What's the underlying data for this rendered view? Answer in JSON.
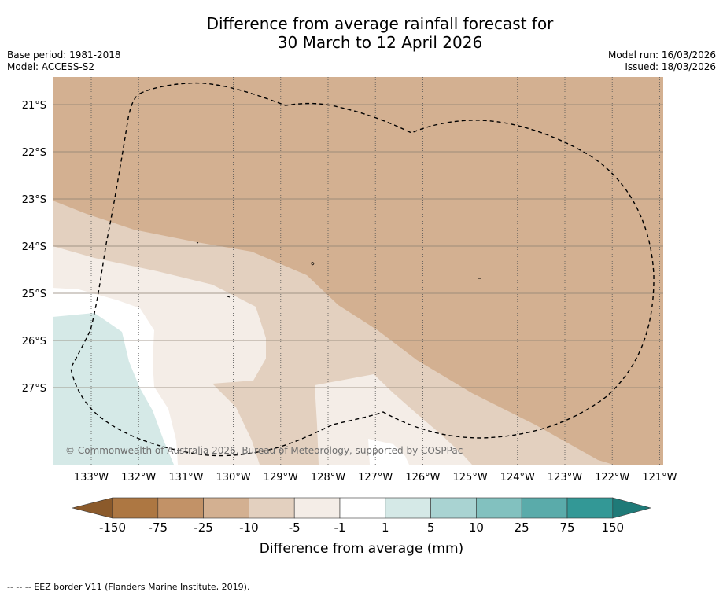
{
  "title": {
    "line1": "Difference from average rainfall forecast for",
    "line2": "30 March to 12 April 2026"
  },
  "meta": {
    "base_period": "Base period: 1981-2018",
    "model": "Model: ACCESS-S2",
    "model_run": "Model run: 16/03/2026",
    "issued": "Issued: 18/03/2026"
  },
  "copyright": "© Commonwealth of Australia 2026, Bureau of Meteorology, supported by COSPPac",
  "axes": {
    "lat_labels": [
      "21°S",
      "22°S",
      "23°S",
      "24°S",
      "25°S",
      "26°S",
      "27°S"
    ],
    "lon_labels": [
      "133°W",
      "132°W",
      "131°W",
      "130°W",
      "129°W",
      "128°W",
      "127°W",
      "126°W",
      "125°W",
      "124°W",
      "123°W",
      "122°W",
      "121°W"
    ]
  },
  "legend": {
    "label": "Difference from average (mm)",
    "ticks": [
      "-150",
      "-75",
      "-25",
      "-10",
      "-5",
      "-1",
      "1",
      "5",
      "10",
      "25",
      "75",
      "150"
    ],
    "colors": {
      "extend_low": "#8b5a2b",
      "bins": [
        "#ad7742",
        "#c29267",
        "#d3b091",
        "#e3d0bf",
        "#f4ede7",
        "#ffffff",
        "#d5e9e7",
        "#a9d3d2",
        "#82c1bf",
        "#5aabaa",
        "#339896"
      ],
      "extend_high": "#1f7a78"
    }
  },
  "footer": "--  --  -- EEZ border V11 (Flanders Marine Institute, 2019)."
}
